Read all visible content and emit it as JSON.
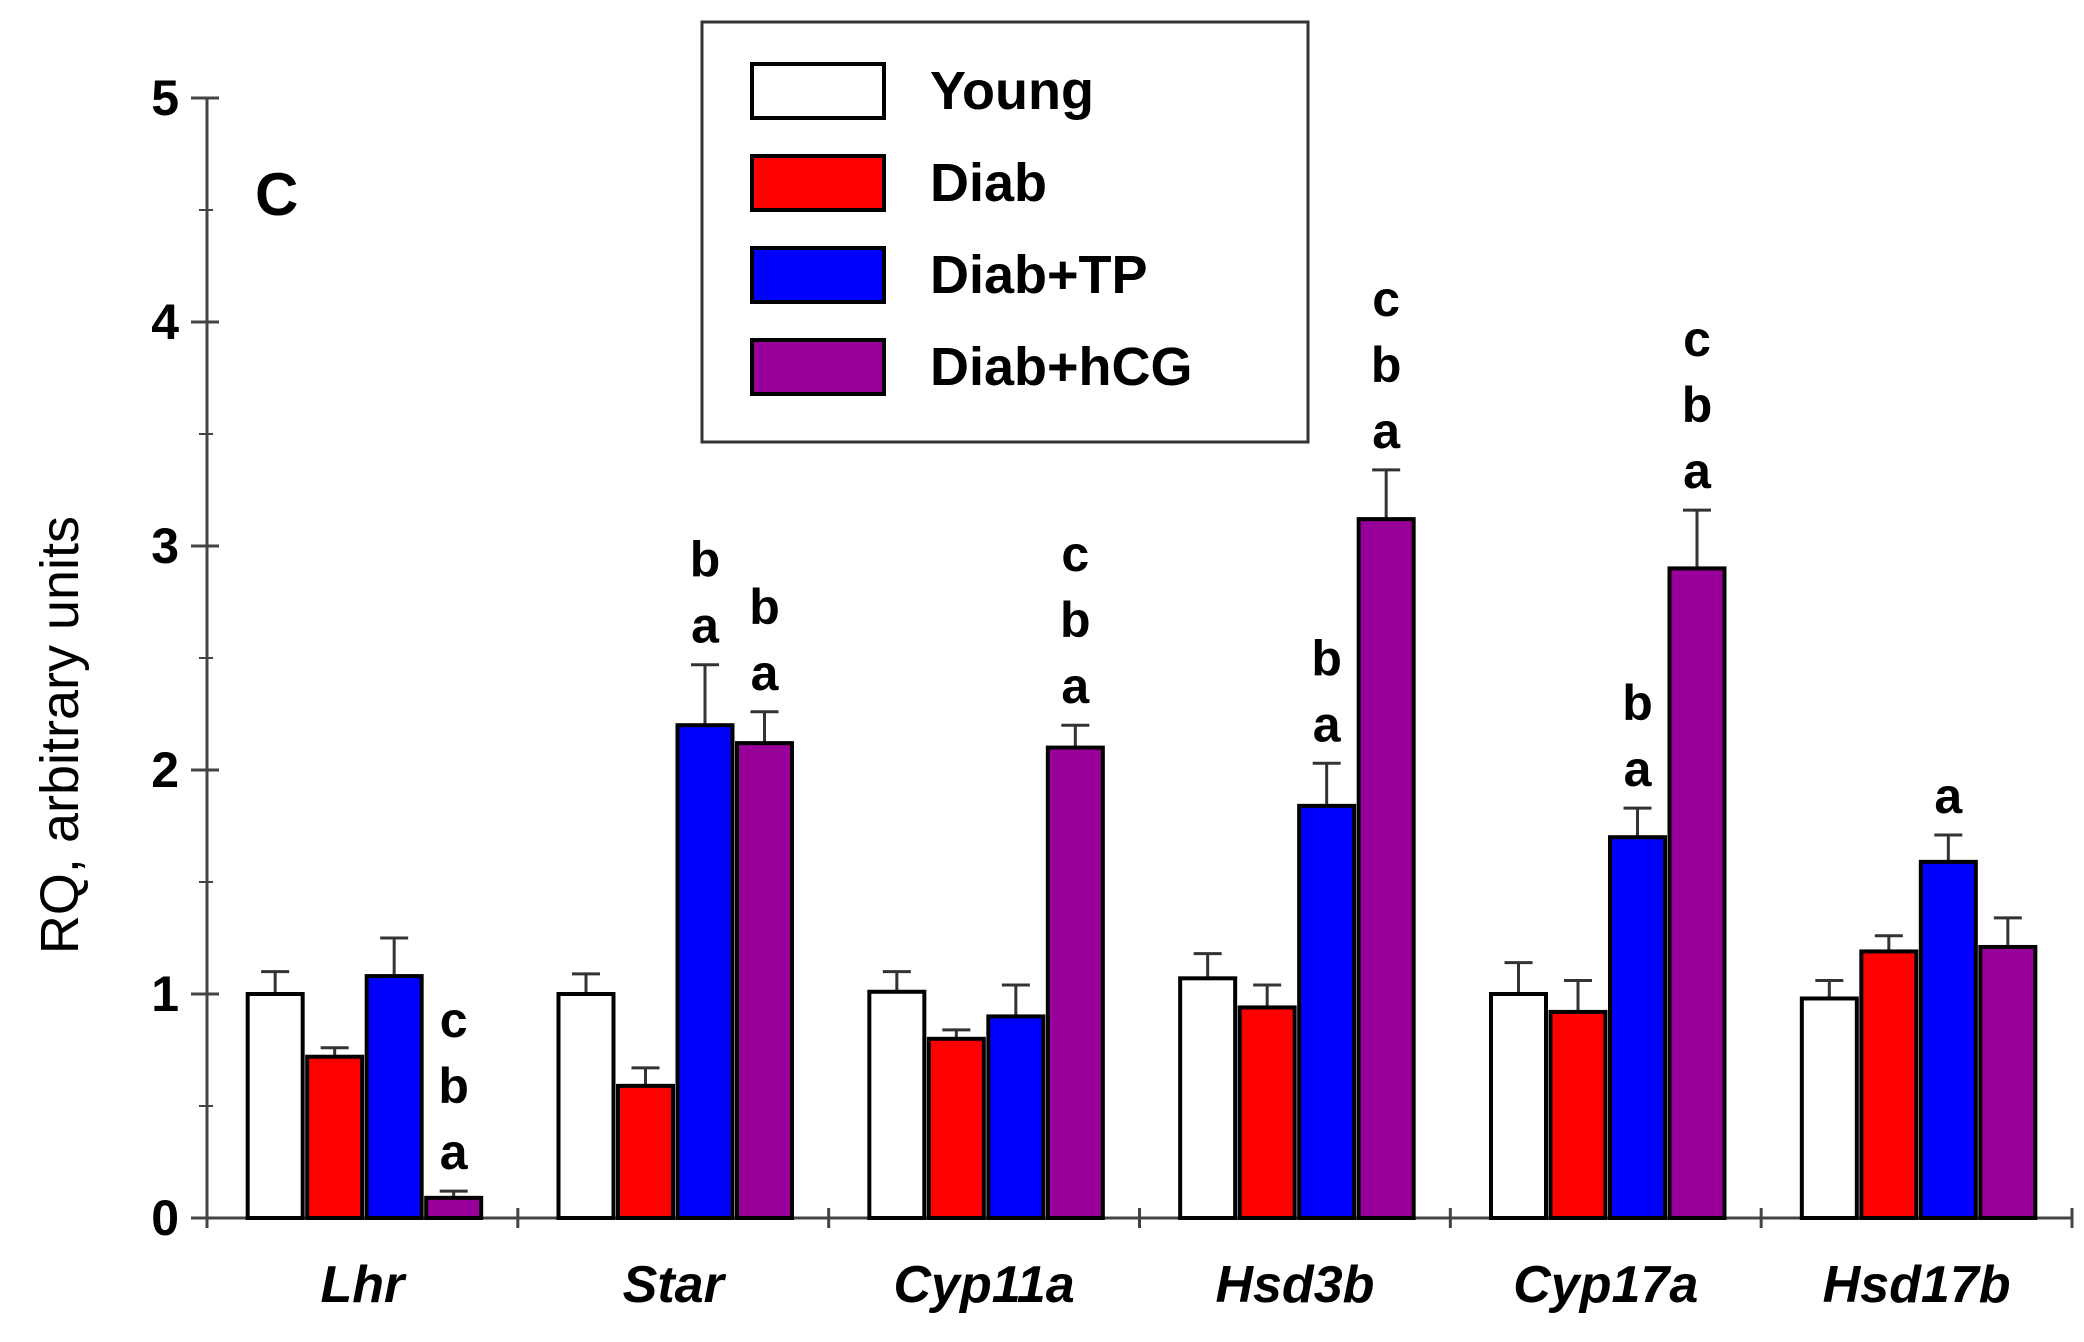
{
  "chart_data": {
    "type": "bar",
    "panel_label": "C",
    "ylabel": "RQ, arbitrary units",
    "xlabel": "",
    "ylim": [
      0,
      5
    ],
    "yticks": [
      "0",
      "1",
      "2",
      "3",
      "4",
      "5"
    ],
    "categories": [
      "Lhr",
      "Star",
      "Cyp11a",
      "Hsd3b",
      "Cyp17a",
      "Hsd17b"
    ],
    "legend_position": "top-center",
    "series": [
      {
        "name": "Young",
        "color": "#ffffff",
        "values": [
          1.0,
          1.0,
          1.01,
          1.07,
          1.0,
          0.98
        ],
        "errors": [
          0.1,
          0.09,
          0.09,
          0.11,
          0.14,
          0.08
        ],
        "labels": [
          "",
          "",
          "",
          "",
          "",
          ""
        ]
      },
      {
        "name": "Diab",
        "color": "#ff0000",
        "values": [
          0.72,
          0.59,
          0.8,
          0.94,
          0.92,
          1.19
        ],
        "errors": [
          0.04,
          0.08,
          0.04,
          0.1,
          0.14,
          0.07
        ],
        "labels": [
          "",
          "",
          "",
          "",
          "",
          ""
        ]
      },
      {
        "name": "Diab+TP",
        "color": "#0000ff",
        "values": [
          1.08,
          2.2,
          0.9,
          1.84,
          1.7,
          1.59
        ],
        "errors": [
          0.17,
          0.27,
          0.14,
          0.19,
          0.13,
          0.12
        ],
        "labels": [
          "",
          "b a",
          "",
          "b a",
          "b a",
          "a"
        ]
      },
      {
        "name": "Diab+hCG",
        "color": "#990099",
        "values": [
          0.09,
          2.12,
          2.1,
          3.12,
          2.9,
          1.21
        ],
        "errors": [
          0.03,
          0.14,
          0.1,
          0.22,
          0.26,
          0.13
        ],
        "labels": [
          "c b a",
          "b a",
          "c b a",
          "c b a",
          "c b a",
          ""
        ]
      }
    ]
  }
}
